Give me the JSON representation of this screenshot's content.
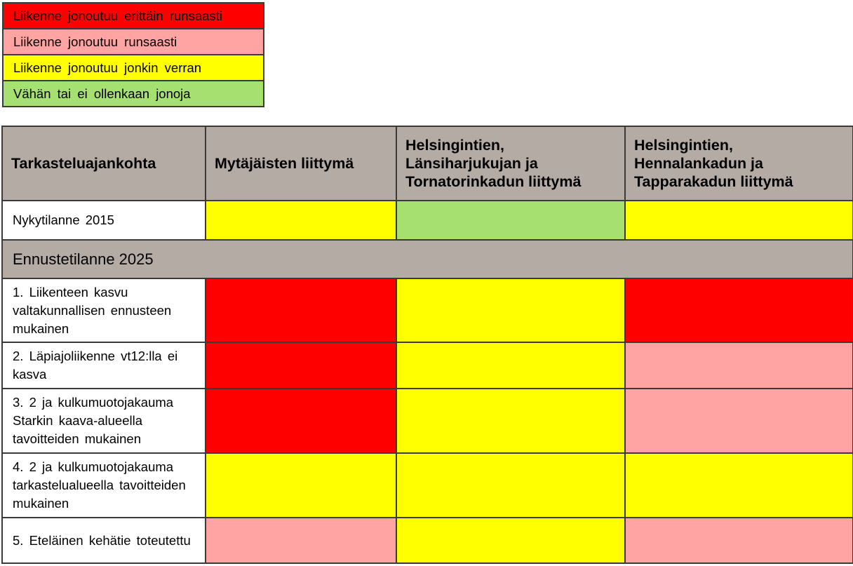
{
  "colors": {
    "very_heavy": "#ff0000",
    "heavy": "#ffa3a3",
    "some": "#ffff00",
    "little": "#a6e070",
    "header_bg": "#b4aba4"
  },
  "legend": [
    {
      "label": "Liikenne jonoutuu erittäin runsaasti",
      "level": "very_heavy"
    },
    {
      "label": "Liikenne jonoutuu runsaasti",
      "level": "heavy"
    },
    {
      "label": "Liikenne jonoutuu jonkin verran",
      "level": "some"
    },
    {
      "label": "Vähän tai ei ollenkaan jonoja",
      "level": "little"
    }
  ],
  "table": {
    "headers": [
      "Tarkasteluajankohta",
      "Mytäjäisten liittymä",
      "Helsingintien, Länsiharjukujan ja Tornatorinkadun liittymä",
      "Helsingintien, Hennalankadun ja Tapparakadun liittymä"
    ],
    "current": {
      "label": "Nykytilanne 2015",
      "levels": [
        "some",
        "little",
        "some"
      ]
    },
    "section_title": "Ennustetilanne 2025",
    "rows": [
      {
        "label": "1. Liikenteen kasvu valtakunnallisen ennusteen mukainen",
        "levels": [
          "very_heavy",
          "some",
          "very_heavy"
        ]
      },
      {
        "label": "2. Läpiajoliikenne vt12:lla ei kasva",
        "levels": [
          "very_heavy",
          "some",
          "heavy"
        ]
      },
      {
        "label": "3. 2 ja kulkumuotojakauma Starkin kaava-alueella tavoitteiden mukainen",
        "levels": [
          "very_heavy",
          "some",
          "heavy"
        ]
      },
      {
        "label": "4. 2 ja kulkumuotojakauma tarkastelualueella tavoitteiden mukainen",
        "levels": [
          "some",
          "some",
          "some"
        ]
      },
      {
        "label": "5. Eteläinen kehätie toteutettu",
        "levels": [
          "heavy",
          "some",
          "heavy"
        ]
      }
    ]
  }
}
